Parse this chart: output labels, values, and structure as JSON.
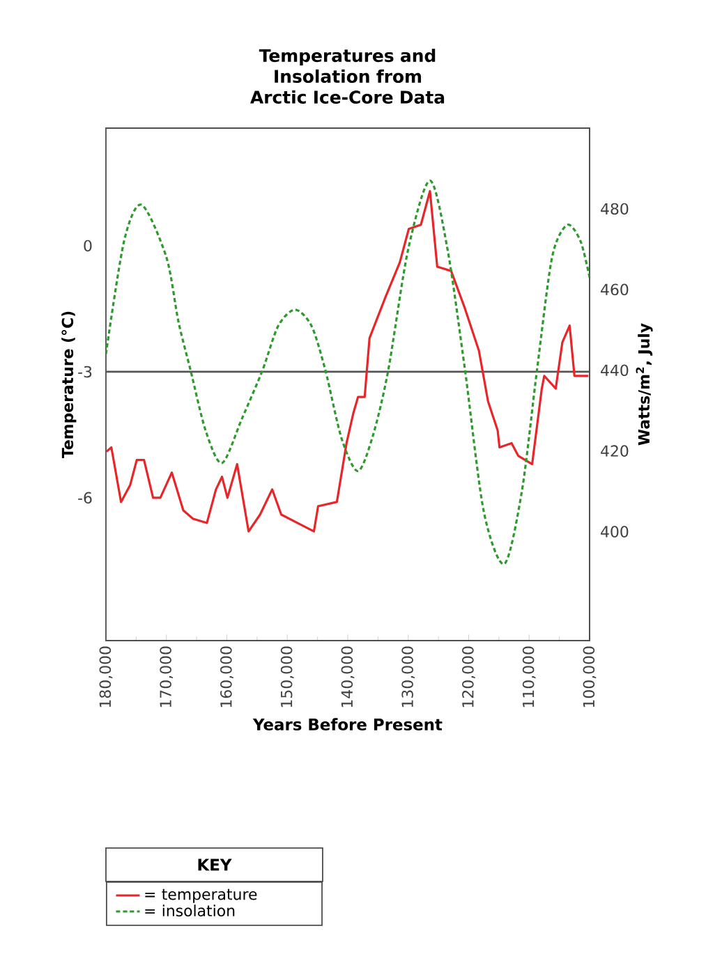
{
  "chart_data": {
    "type": "line",
    "title": "Temperatures and Insolation from Arctic Ice-Core Data",
    "xlabel": "Years Before Present",
    "ylabel": "Temperature (°C)",
    "y2label": "Watts/m$^{2}$, July",
    "legend_title": "KEY",
    "legend": "bottom",
    "xlim": [
      180000,
      100000
    ],
    "xticks": [
      {
        "value": 180000,
        "label": "180,000"
      },
      {
        "value": 170000,
        "label": "170,000"
      },
      {
        "value": 160000,
        "label": "160,000"
      },
      {
        "value": 150000,
        "label": "150,000"
      },
      {
        "value": 140000,
        "label": "140,000"
      },
      {
        "value": 130000,
        "label": "130,000"
      },
      {
        "value": 120000,
        "label": "120,000"
      },
      {
        "value": 110000,
        "label": "110,000"
      },
      {
        "value": 100000,
        "label": "100,000"
      }
    ],
    "ylim": [
      -9.4,
      2.8
    ],
    "yticks": [
      -6,
      -3,
      0
    ],
    "y2lim": [
      373,
      500
    ],
    "y2ticks": [
      400,
      420,
      440,
      460,
      480
    ],
    "ref_lines": [
      {
        "axis": "y",
        "value": -3,
        "color": "#555555"
      }
    ],
    "series": [
      {
        "name": "= temperature",
        "color": "#e8262a",
        "line_style": "solid",
        "x": [
          179900,
          179100,
          177500,
          176000,
          174900,
          173700,
          172200,
          171000,
          169100,
          167200,
          165600,
          163300,
          161800,
          160800,
          159900,
          158300,
          156400,
          154500,
          152500,
          151000,
          148300,
          145600,
          144900,
          141800,
          140200,
          139100,
          138300,
          137200,
          136400,
          133700,
          131400,
          129900,
          127900,
          126400,
          125200,
          122900,
          120600,
          118300,
          116800,
          115200,
          114900,
          112900,
          111800,
          109500,
          107900,
          107500,
          105600,
          104500,
          103300,
          102500,
          100200
        ],
        "values": [
          -4.9,
          -4.8,
          -6.1,
          -5.7,
          -5.1,
          -5.1,
          -6.0,
          -6.0,
          -5.4,
          -6.3,
          -6.5,
          -6.6,
          -5.8,
          -5.5,
          -6.0,
          -5.2,
          -6.8,
          -6.4,
          -5.8,
          -6.4,
          -6.6,
          -6.8,
          -6.2,
          -6.1,
          -4.7,
          -4.0,
          -3.6,
          -3.6,
          -2.2,
          -1.2,
          -0.4,
          0.4,
          0.5,
          1.3,
          -0.5,
          -0.6,
          -1.5,
          -2.5,
          -3.7,
          -4.4,
          -4.8,
          -4.7,
          -5.0,
          -5.2,
          -3.4,
          -3.1,
          -3.4,
          -2.3,
          -1.9,
          -3.1,
          -3.1
        ]
      },
      {
        "name": "= insolation",
        "color": "#2e9a2e",
        "line_style": "dashed",
        "axis": "y2",
        "x": [
          180000,
          177000,
          174100,
          170000,
          168000,
          166000,
          163500,
          160800,
          157500,
          154100,
          151500,
          148700,
          146000,
          143700,
          141000,
          138300,
          135800,
          133300,
          130000,
          126400,
          123500,
          120600,
          117500,
          114100,
          111200,
          108700,
          106200,
          103700,
          101500,
          100000
        ],
        "values": [
          444,
          472,
          481,
          468,
          452,
          440,
          425,
          417,
          428,
          440,
          451,
          455,
          451,
          440,
          423,
          415,
          424,
          440,
          470,
          487,
          470,
          440,
          405,
          392,
          410,
          440,
          468,
          476,
          472,
          463
        ]
      }
    ]
  }
}
